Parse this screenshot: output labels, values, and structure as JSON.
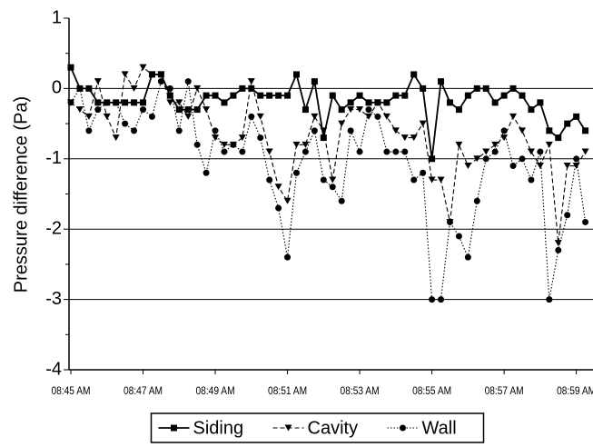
{
  "chart_data": {
    "type": "line",
    "y_label": "Pressure difference (Pa)",
    "categories": [
      "08:45 AM",
      null,
      null,
      null,
      null,
      null,
      null,
      null,
      "08:47 AM",
      null,
      null,
      null,
      null,
      null,
      null,
      null,
      "08:49 AM",
      null,
      null,
      null,
      null,
      null,
      null,
      null,
      "08:51 AM",
      null,
      null,
      null,
      null,
      null,
      null,
      null,
      "08:53 AM",
      null,
      null,
      null,
      null,
      null,
      null,
      null,
      "08:55 AM",
      null,
      null,
      null,
      null,
      null,
      null,
      null,
      "08:57 AM",
      null,
      null,
      null,
      null,
      null,
      null,
      null,
      "08:59 AM",
      null
    ],
    "series": [
      {
        "name": "Siding",
        "color": "#000000",
        "marker": "square",
        "dash": "solid",
        "values": [
          0.3,
          0,
          0,
          -0.2,
          -0.2,
          -0.2,
          -0.2,
          -0.2,
          -0.2,
          0.2,
          0.2,
          -0.1,
          -0.3,
          -0.3,
          -0.3,
          -0.1,
          -0.1,
          -0.2,
          -0.1,
          0,
          0,
          -0.1,
          -0.1,
          -0.1,
          -0.1,
          0.2,
          -0.3,
          0.1,
          -0.7,
          -0.1,
          -0.3,
          -0.2,
          -0.1,
          -0.2,
          -0.2,
          -0.2,
          -0.1,
          -0.1,
          0.2,
          0,
          -1.0,
          0.1,
          -0.2,
          -0.3,
          -0.1,
          0,
          0,
          -0.2,
          -0.1,
          0,
          -0.1,
          -0.3,
          -0.2,
          -0.6,
          -0.7,
          -0.5,
          -0.4,
          -0.6
        ]
      },
      {
        "name": "Cavity",
        "color": "#000000",
        "marker": "triangle-down",
        "dash": "dashed",
        "values": [
          -0.2,
          -0.3,
          -0.4,
          0.1,
          -0.4,
          -0.7,
          0.2,
          0,
          0.3,
          0.2,
          0.2,
          -0.2,
          -0.2,
          -0.4,
          0,
          -0.3,
          -0.7,
          -0.8,
          -0.8,
          -0.7,
          0.1,
          -0.4,
          -0.9,
          -1.4,
          -1.6,
          -0.8,
          -0.8,
          -0.4,
          -0.6,
          -1.3,
          -0.5,
          -0.3,
          -0.3,
          -0.4,
          -0.2,
          -0.4,
          -0.6,
          -0.7,
          -0.7,
          -0.5,
          -1.3,
          -1.3,
          -1.9,
          -0.8,
          -1.1,
          -1.0,
          -0.9,
          -0.8,
          -0.7,
          -0.4,
          -0.6,
          -0.9,
          -1.1,
          -0.8,
          -2.2,
          -1.1,
          -1.1,
          -0.9
        ]
      },
      {
        "name": "Wall",
        "color": "#000000",
        "marker": "circle",
        "dash": "dotted",
        "values": [
          -0.2,
          0,
          -0.6,
          -0.3,
          -0.2,
          -0.2,
          -0.5,
          -0.6,
          -0.3,
          -0.4,
          0.1,
          0,
          -0.6,
          0.1,
          -0.8,
          -1.2,
          -0.6,
          -0.9,
          -0.8,
          -0.9,
          -0.4,
          -0.7,
          -1.3,
          -1.7,
          -2.4,
          -1.2,
          -0.9,
          -0.6,
          -1.3,
          -1.4,
          -1.6,
          -0.6,
          -0.9,
          -0.3,
          -0.4,
          -0.9,
          -0.9,
          -0.9,
          -1.3,
          -1.2,
          -3.0,
          -3.0,
          -1.9,
          -2.1,
          -2.4,
          -1.6,
          -1.0,
          -0.9,
          -0.6,
          -1.1,
          -1.0,
          -1.3,
          -0.9,
          -3.0,
          -2.3,
          -1.8,
          -1.0,
          -1.9
        ]
      }
    ],
    "ylim": [
      -4,
      1
    ],
    "yticks": [
      -4,
      -3,
      -2,
      -1,
      0,
      1
    ],
    "grid": true,
    "legend": "bottom"
  }
}
